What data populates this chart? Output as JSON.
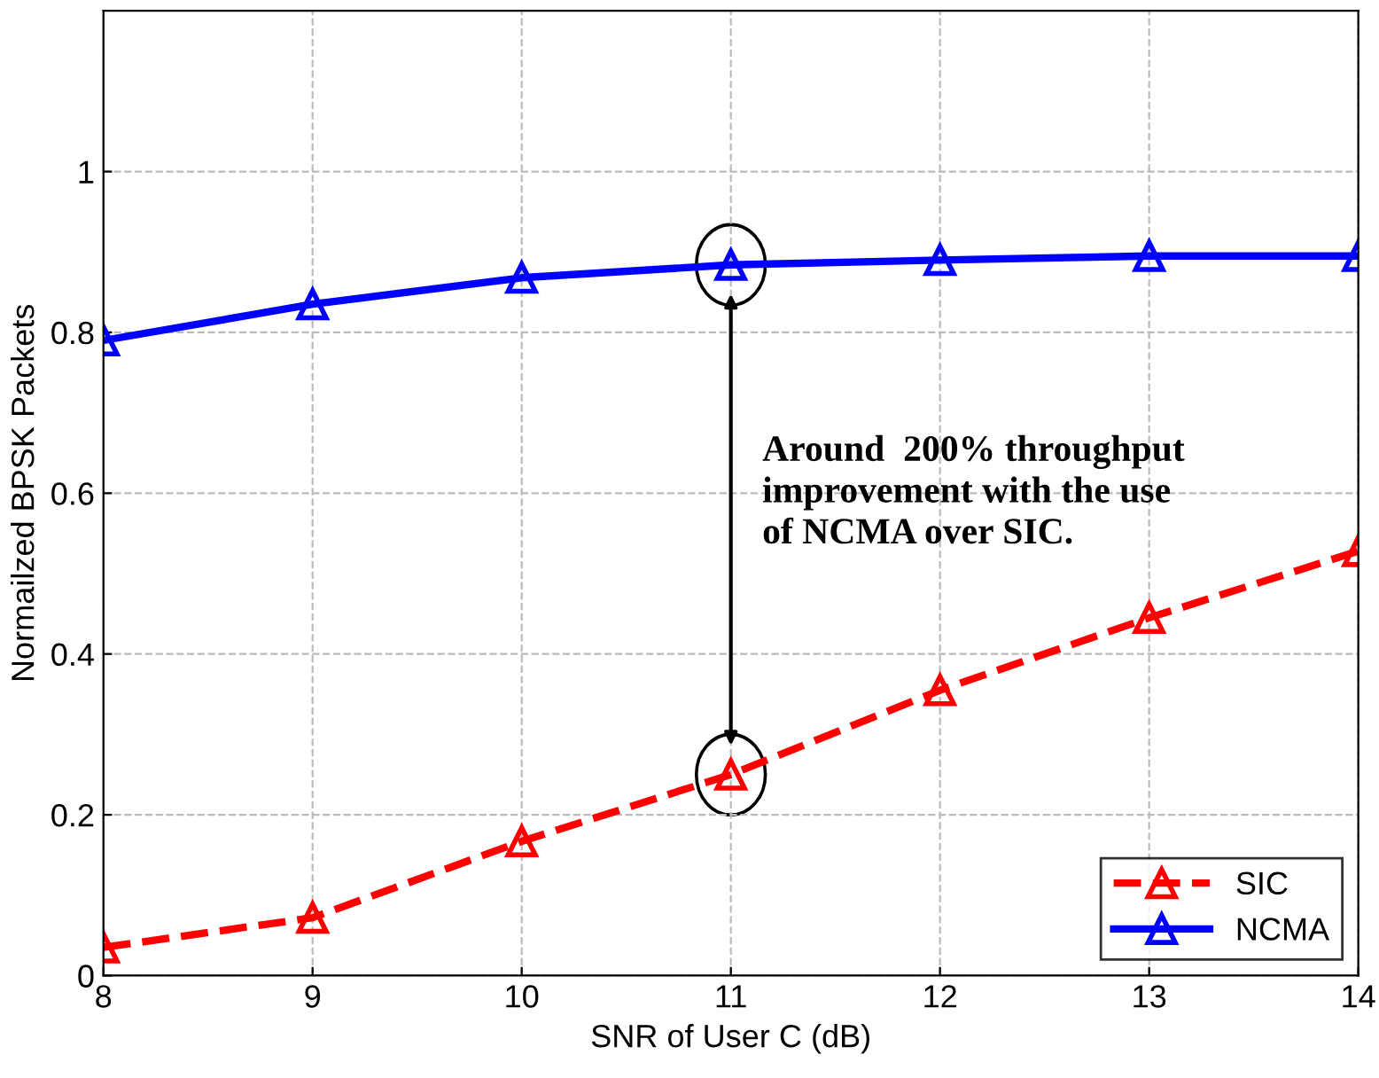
{
  "chart_data": {
    "type": "line",
    "xlabel": "SNR of User C (dB)",
    "ylabel": "Normailzed BPSK Packets",
    "x": [
      8,
      9,
      10,
      11,
      12,
      13,
      14
    ],
    "series": [
      {
        "name": "SIC",
        "color": "#ff0000",
        "line_style": "dashed",
        "values": [
          0.035,
          0.072,
          0.167,
          0.25,
          0.355,
          0.445,
          0.528
        ]
      },
      {
        "name": "NCMA",
        "color": "#0000ff",
        "line_style": "solid",
        "values": [
          0.79,
          0.835,
          0.868,
          0.884,
          0.89,
          0.895,
          0.895
        ]
      }
    ],
    "marker": "triangle",
    "xlim": [
      8,
      14
    ],
    "ylim": [
      0,
      1.2
    ],
    "xticks": [
      8,
      9,
      10,
      11,
      12,
      13,
      14
    ],
    "yticks": [
      0,
      0.2,
      0.4,
      0.6,
      0.8,
      1
    ],
    "grid": true,
    "legend": "bottom right",
    "annotations": [
      "Around  200% throughput\nimprovement with the use\nof NCMA over SIC."
    ]
  }
}
